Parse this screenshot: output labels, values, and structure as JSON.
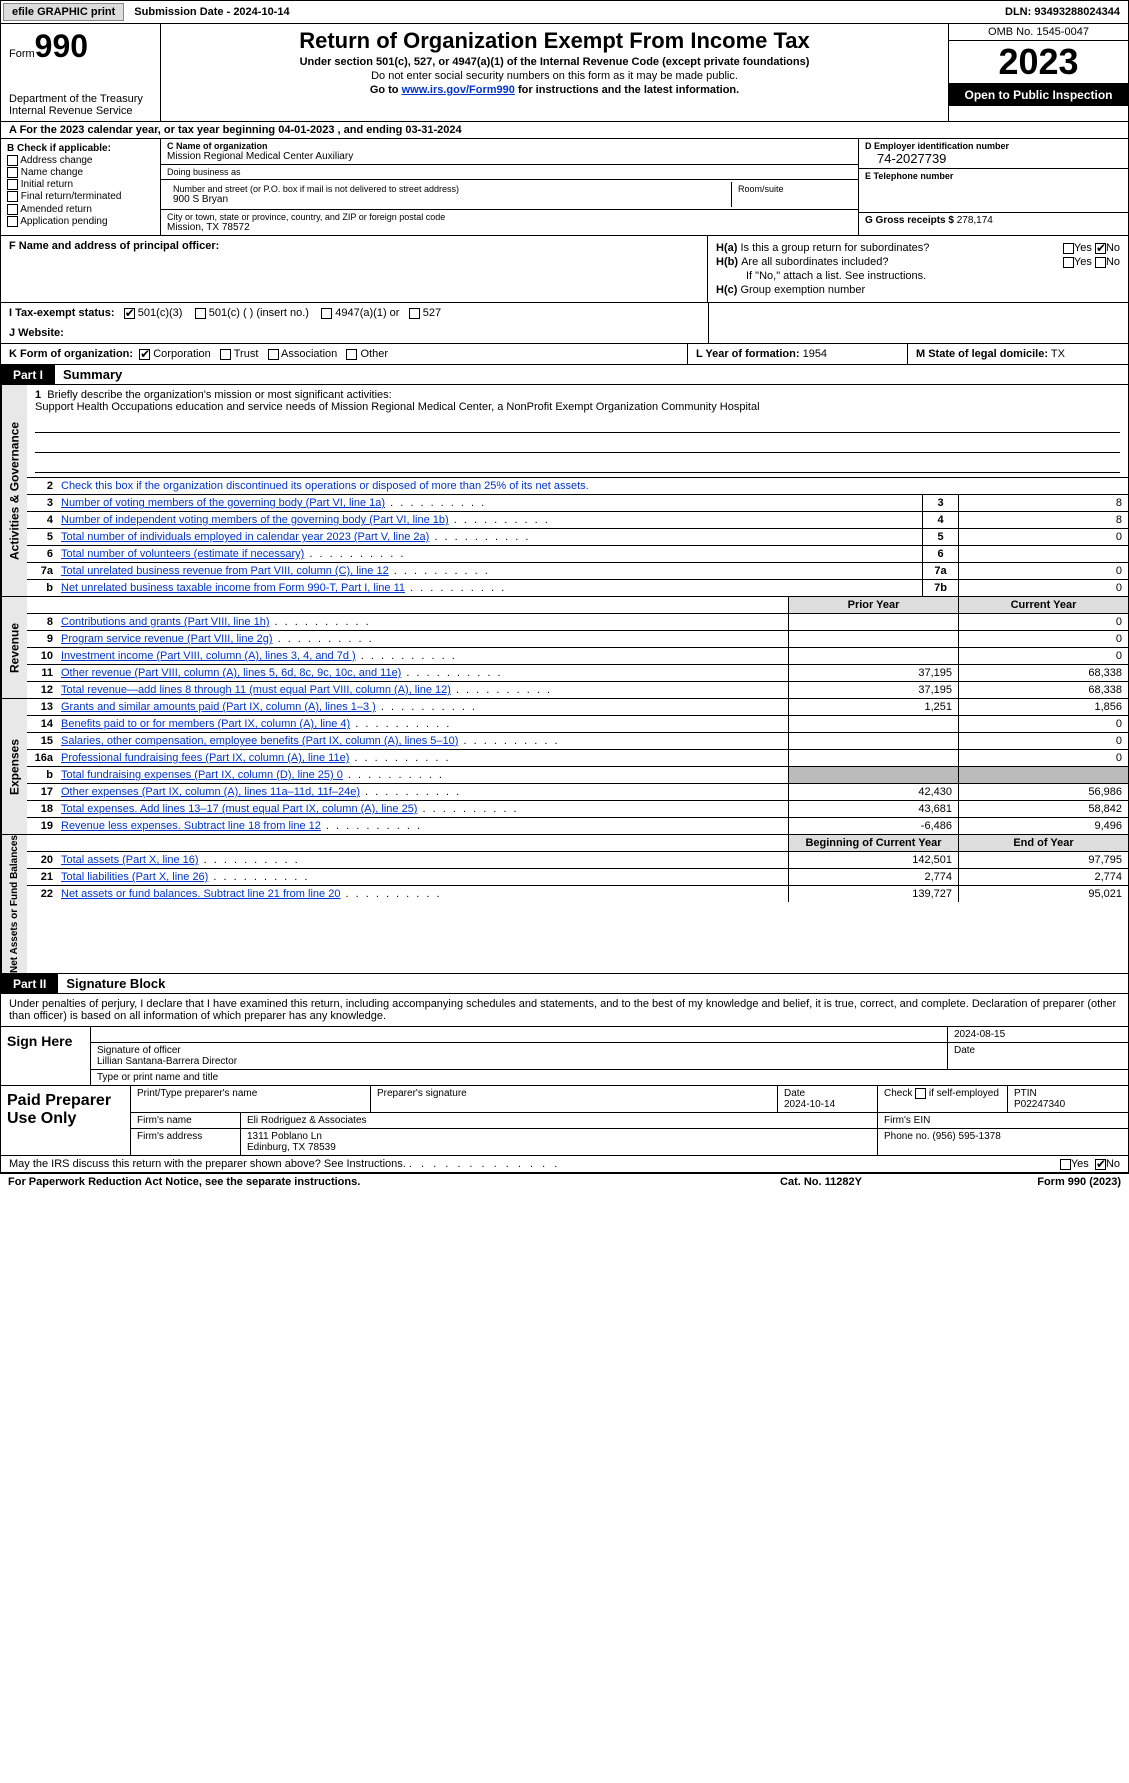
{
  "colors": {
    "link": "#0033cc",
    "shade": "#bbbbbb",
    "hdr_bg": "#dddddd",
    "black": "#000000"
  },
  "topbar": {
    "efile": "efile GRAPHIC print",
    "submission": "Submission Date - 2024-10-14",
    "dln": "DLN: 93493288024344"
  },
  "header": {
    "form_word": "Form",
    "form_num": "990",
    "dept": "Department of the Treasury",
    "irs": "Internal Revenue Service",
    "title": "Return of Organization Exempt From Income Tax",
    "under": "Under section 501(c), 527, or 4947(a)(1) of the Internal Revenue Code (except private foundations)",
    "note": "Do not enter social security numbers on this form as it may be made public.",
    "goto_pre": "Go to ",
    "goto_link": "www.irs.gov/Form990",
    "goto_post": " for instructions and the latest information.",
    "omb": "OMB No. 1545-0047",
    "year": "2023",
    "open": "Open to Public Inspection"
  },
  "lineA": {
    "text_pre": "A For the 2023 calendar year, or tax year beginning ",
    "begin": "04-01-2023",
    "mid": "   , and ending ",
    "end": "03-31-2024"
  },
  "colB": {
    "label": "B Check if applicable:",
    "opts": [
      "Address change",
      "Name change",
      "Initial return",
      "Final return/terminated",
      "Amended return",
      "Application pending"
    ]
  },
  "colC": {
    "name_lbl": "C Name of organization",
    "name": "Mission Regional Medical Center Auxiliary",
    "dba_lbl": "Doing business as",
    "dba": "",
    "addr_lbl": "Number and street (or P.O. box if mail is not delivered to street address)",
    "room_lbl": "Room/suite",
    "addr": "900 S Bryan",
    "city_lbl": "City or town, state or province, country, and ZIP or foreign postal code",
    "city": "Mission, TX  78572"
  },
  "colD": {
    "ein_lbl": "D Employer identification number",
    "ein": "74-2027739",
    "tel_lbl": "E Telephone number",
    "tel": "",
    "gross_lbl": "G Gross receipts $",
    "gross": "278,174"
  },
  "rowF": {
    "label": "F  Name and address of principal officer:"
  },
  "rowH": {
    "a_lbl": "H(a)",
    "a_q": "Is this a group return for subordinates?",
    "b_lbl": "H(b)",
    "b_q": "Are all subordinates included?",
    "b_note": "If \"No,\" attach a list. See instructions.",
    "c_lbl": "H(c)",
    "c_q": "Group exemption number",
    "yes": "Yes",
    "no": "No",
    "a_yes": false,
    "a_no": true,
    "b_yes": false,
    "b_no": false
  },
  "rowI": {
    "label": "I    Tax-exempt status:",
    "o1": "501(c)(3)",
    "o2": "501(c) (  ) (insert no.)",
    "o3": "4947(a)(1) or",
    "o4": "527",
    "checked": 1
  },
  "rowJ": {
    "label": "J    Website:",
    "val": ""
  },
  "rowK": {
    "label": "K Form of organization:",
    "opts": [
      "Corporation",
      "Trust",
      "Association",
      "Other"
    ],
    "checked": 0
  },
  "rowL": {
    "label": "L Year of formation:",
    "val": "1954"
  },
  "rowM": {
    "label": "M State of legal domicile:",
    "val": "TX"
  },
  "part1": {
    "tag": "Part I",
    "title": "Summary"
  },
  "gov": {
    "vlabel": "Activities & Governance",
    "l1_lbl": "Briefly describe the organization's mission or most significant activities:",
    "l1_val": "Support Health Occupations education and service needs of Mission Regional Medical Center, a NonProfit Exempt Organization Community Hospital",
    "l2": "Check this box      if the organization discontinued its operations or disposed of more than 25% of its net assets.",
    "rows": [
      {
        "n": "3",
        "d": "Number of voting members of the governing body (Part VI, line 1a)",
        "bn": "3",
        "v": "8"
      },
      {
        "n": "4",
        "d": "Number of independent voting members of the governing body (Part VI, line 1b)",
        "bn": "4",
        "v": "8"
      },
      {
        "n": "5",
        "d": "Total number of individuals employed in calendar year 2023 (Part V, line 2a)",
        "bn": "5",
        "v": "0"
      },
      {
        "n": "6",
        "d": "Total number of volunteers (estimate if necessary)",
        "bn": "6",
        "v": ""
      },
      {
        "n": "7a",
        "d": "Total unrelated business revenue from Part VIII, column (C), line 12",
        "bn": "7a",
        "v": "0"
      },
      {
        "n": "b",
        "d": "Net unrelated business taxable income from Form 990-T, Part I, line 11",
        "bn": "7b",
        "v": "0"
      }
    ]
  },
  "rev": {
    "vlabel": "Revenue",
    "hdr_prior": "Prior Year",
    "hdr_curr": "Current Year",
    "rows": [
      {
        "n": "8",
        "d": "Contributions and grants (Part VIII, line 1h)",
        "p": "",
        "c": "0"
      },
      {
        "n": "9",
        "d": "Program service revenue (Part VIII, line 2g)",
        "p": "",
        "c": "0"
      },
      {
        "n": "10",
        "d": "Investment income (Part VIII, column (A), lines 3, 4, and 7d )",
        "p": "",
        "c": "0"
      },
      {
        "n": "11",
        "d": "Other revenue (Part VIII, column (A), lines 5, 6d, 8c, 9c, 10c, and 11e)",
        "p": "37,195",
        "c": "68,338"
      },
      {
        "n": "12",
        "d": "Total revenue—add lines 8 through 11 (must equal Part VIII, column (A), line 12)",
        "p": "37,195",
        "c": "68,338"
      }
    ]
  },
  "exp": {
    "vlabel": "Expenses",
    "rows": [
      {
        "n": "13",
        "d": "Grants and similar amounts paid (Part IX, column (A), lines 1–3 )",
        "p": "1,251",
        "c": "1,856"
      },
      {
        "n": "14",
        "d": "Benefits paid to or for members (Part IX, column (A), line 4)",
        "p": "",
        "c": "0"
      },
      {
        "n": "15",
        "d": "Salaries, other compensation, employee benefits (Part IX, column (A), lines 5–10)",
        "p": "",
        "c": "0"
      },
      {
        "n": "16a",
        "d": "Professional fundraising fees (Part IX, column (A), line 11e)",
        "p": "",
        "c": "0"
      },
      {
        "n": "b",
        "d": "Total fundraising expenses (Part IX, column (D), line 25) 0",
        "p": "SHADE",
        "c": "SHADE"
      },
      {
        "n": "17",
        "d": "Other expenses (Part IX, column (A), lines 11a–11d, 11f–24e)",
        "p": "42,430",
        "c": "56,986"
      },
      {
        "n": "18",
        "d": "Total expenses. Add lines 13–17 (must equal Part IX, column (A), line 25)",
        "p": "43,681",
        "c": "58,842"
      },
      {
        "n": "19",
        "d": "Revenue less expenses. Subtract line 18 from line 12",
        "p": "-6,486",
        "c": "9,496"
      }
    ]
  },
  "net": {
    "vlabel": "Net Assets or Fund Balances",
    "hdr_begin": "Beginning of Current Year",
    "hdr_end": "End of Year",
    "rows": [
      {
        "n": "20",
        "d": "Total assets (Part X, line 16)",
        "p": "142,501",
        "c": "97,795"
      },
      {
        "n": "21",
        "d": "Total liabilities (Part X, line 26)",
        "p": "2,774",
        "c": "2,774"
      },
      {
        "n": "22",
        "d": "Net assets or fund balances. Subtract line 21 from line 20",
        "p": "139,727",
        "c": "95,021"
      }
    ]
  },
  "part2": {
    "tag": "Part II",
    "title": "Signature Block"
  },
  "sig_intro": "Under penalties of perjury, I declare that I have examined this return, including accompanying schedules and statements, and to the best of my knowledge and belief, it is true, correct, and complete. Declaration of preparer (other than officer) is based on all information of which preparer has any knowledge.",
  "sign": {
    "left": "Sign Here",
    "sig_lbl": "Signature of officer",
    "date_lbl": "Date",
    "date": "2024-08-15",
    "name": "Lillian Santana-Barrera  Director",
    "type_lbl": "Type or print name and title"
  },
  "paid": {
    "left": "Paid Preparer Use Only",
    "r1": {
      "c1_lbl": "Print/Type preparer's name",
      "c2_lbl": "Preparer's signature",
      "c3_lbl": "Date",
      "c3": "2024-10-14",
      "c4_lbl": "Check        if self-employed",
      "c5_lbl": "PTIN",
      "c5": "P02247340"
    },
    "r2": {
      "lbl": "Firm's name",
      "val": "Eli Rodriguez & Associates",
      "ein_lbl": "Firm's EIN"
    },
    "r3": {
      "lbl": "Firm's address",
      "val": "1311 Poblano Ln",
      "city": "Edinburg, TX  78539",
      "ph_lbl": "Phone no.",
      "ph": "(956) 595-1378"
    }
  },
  "discuss": {
    "q": "May the IRS discuss this return with the preparer shown above? See Instructions.",
    "yes": "Yes",
    "no": "No",
    "yes_chk": false,
    "no_chk": true
  },
  "footer": {
    "l": "For Paperwork Reduction Act Notice, see the separate instructions.",
    "m": "Cat. No. 11282Y",
    "r": "Form 990 (2023)"
  }
}
